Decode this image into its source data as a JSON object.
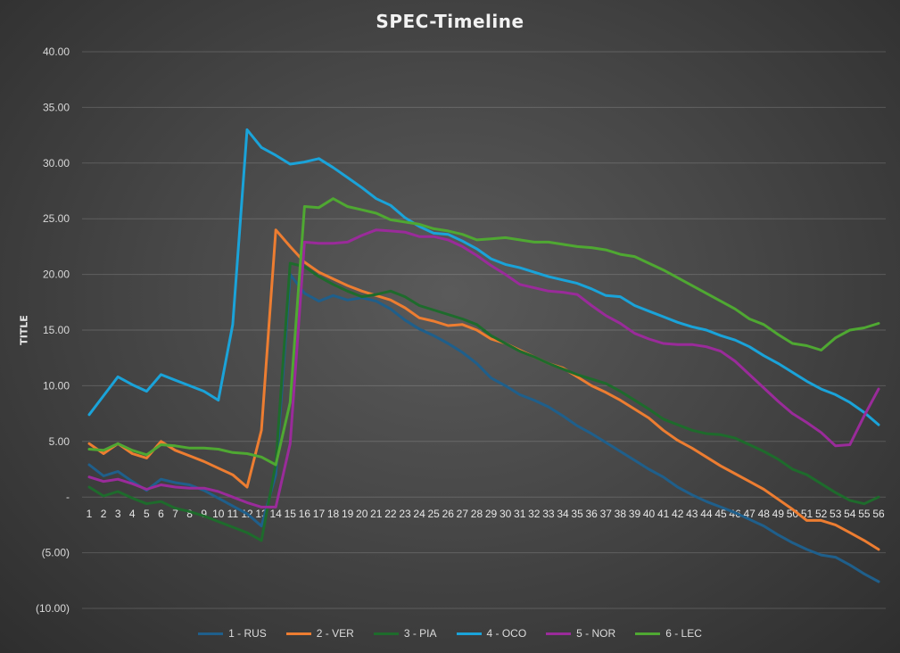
{
  "chart_data": {
    "type": "line",
    "title": "SPEC-Timeline",
    "xlabel": "",
    "ylabel": "TITLE",
    "ylim": [
      -10,
      40
    ],
    "y_ticks": [
      {
        "value": 40,
        "label": "40.00"
      },
      {
        "value": 35,
        "label": "35.00"
      },
      {
        "value": 30,
        "label": "30.00"
      },
      {
        "value": 25,
        "label": "25.00"
      },
      {
        "value": 20,
        "label": "20.00"
      },
      {
        "value": 15,
        "label": "15.00"
      },
      {
        "value": 10,
        "label": "10.00"
      },
      {
        "value": 5,
        "label": "5.00"
      },
      {
        "value": 0,
        "label": "-"
      },
      {
        "value": -5,
        "label": "(5.00)"
      },
      {
        "value": -10,
        "label": "(10.00)"
      }
    ],
    "categories": [
      "1",
      "2",
      "3",
      "4",
      "5",
      "6",
      "7",
      "8",
      "9",
      "10",
      "11",
      "12",
      "13",
      "14",
      "15",
      "16",
      "17",
      "18",
      "19",
      "20",
      "21",
      "22",
      "23",
      "24",
      "25",
      "26",
      "27",
      "28",
      "29",
      "30",
      "31",
      "32",
      "33",
      "34",
      "35",
      "36",
      "37",
      "38",
      "39",
      "40",
      "41",
      "42",
      "43",
      "44",
      "45",
      "46",
      "47",
      "48",
      "49",
      "50",
      "51",
      "52",
      "53",
      "54",
      "55",
      "56"
    ],
    "legend_position": "bottom",
    "series": [
      {
        "name": "1 - RUS",
        "color": "#1f5f8b",
        "values": [
          2.9,
          1.9,
          2.3,
          1.4,
          0.6,
          1.6,
          1.3,
          1.1,
          0.6,
          -0.1,
          -0.8,
          -1.5,
          -2.6,
          2.0,
          20.0,
          18.3,
          17.6,
          18.1,
          17.7,
          17.9,
          17.6,
          16.9,
          15.9,
          15.1,
          14.5,
          13.8,
          13.0,
          12.0,
          10.7,
          10.0,
          9.2,
          8.7,
          8.1,
          7.3,
          6.4,
          5.7,
          4.9,
          4.1,
          3.3,
          2.5,
          1.8,
          0.9,
          0.2,
          -0.4,
          -0.9,
          -1.4,
          -2.0,
          -2.6,
          -3.4,
          -4.1,
          -4.7,
          -5.2,
          -5.4,
          -6.1,
          -6.9,
          -7.6
        ]
      },
      {
        "name": "2 - VER",
        "color": "#ed7d31",
        "values": [
          4.8,
          3.9,
          4.8,
          3.9,
          3.5,
          5.0,
          4.2,
          3.7,
          3.2,
          2.6,
          2.0,
          0.9,
          6.0,
          24.0,
          22.5,
          21.1,
          20.2,
          19.6,
          19.0,
          18.5,
          18.1,
          17.7,
          17.0,
          16.1,
          15.8,
          15.4,
          15.5,
          15.0,
          14.2,
          13.8,
          13.2,
          12.6,
          12.0,
          11.6,
          10.8,
          10.0,
          9.4,
          8.7,
          7.9,
          7.1,
          6.0,
          5.1,
          4.4,
          3.6,
          2.8,
          2.1,
          1.4,
          0.7,
          -0.2,
          -1.1,
          -2.1,
          -2.1,
          -2.5,
          -3.2,
          -3.9,
          -4.7
        ]
      },
      {
        "name": "3 - PIA",
        "color": "#1e6b2c",
        "values": [
          0.9,
          0.1,
          0.5,
          -0.1,
          -0.6,
          -0.4,
          -1.0,
          -1.3,
          -1.7,
          -2.2,
          -2.7,
          -3.2,
          -3.9,
          3.0,
          21.0,
          20.7,
          19.8,
          19.1,
          18.5,
          18.0,
          18.2,
          18.5,
          18.0,
          17.2,
          16.8,
          16.4,
          16.0,
          15.5,
          14.5,
          13.8,
          13.1,
          12.6,
          12.0,
          11.5,
          11.0,
          10.6,
          10.2,
          9.5,
          8.7,
          7.9,
          7.0,
          6.5,
          6.0,
          5.7,
          5.6,
          5.3,
          4.7,
          4.1,
          3.4,
          2.5,
          2.0,
          1.2,
          0.4,
          -0.3,
          -0.6,
          0.0
        ]
      },
      {
        "name": "4 - OCO",
        "color": "#1aa3d9",
        "values": [
          7.4,
          9.1,
          10.8,
          10.1,
          9.5,
          11.0,
          10.5,
          10.0,
          9.5,
          8.7,
          15.5,
          33.0,
          31.4,
          30.7,
          29.9,
          30.1,
          30.4,
          29.6,
          28.7,
          27.8,
          26.8,
          26.2,
          25.1,
          24.3,
          23.7,
          23.6,
          23.0,
          22.3,
          21.4,
          20.9,
          20.6,
          20.2,
          19.8,
          19.5,
          19.2,
          18.7,
          18.1,
          18.0,
          17.2,
          16.7,
          16.2,
          15.7,
          15.3,
          15.0,
          14.5,
          14.1,
          13.5,
          12.7,
          12.0,
          11.2,
          10.4,
          9.7,
          9.2,
          8.5,
          7.6,
          6.5
        ]
      },
      {
        "name": "5 - NOR",
        "color": "#9a2b9a",
        "values": [
          1.8,
          1.4,
          1.6,
          1.2,
          0.7,
          1.1,
          0.9,
          0.8,
          0.8,
          0.5,
          0.0,
          -0.5,
          -0.9,
          -0.9,
          4.8,
          22.9,
          22.8,
          22.8,
          22.9,
          23.5,
          24.0,
          23.9,
          23.8,
          23.4,
          23.4,
          23.1,
          22.5,
          21.7,
          20.8,
          20.0,
          19.1,
          18.8,
          18.5,
          18.4,
          18.2,
          17.2,
          16.3,
          15.6,
          14.7,
          14.2,
          13.8,
          13.7,
          13.7,
          13.5,
          13.1,
          12.2,
          11.0,
          9.8,
          8.6,
          7.5,
          6.7,
          5.8,
          4.6,
          4.7,
          7.3,
          9.7
        ]
      },
      {
        "name": "6 - LEC",
        "color": "#4fa832",
        "values": [
          4.3,
          4.2,
          4.8,
          4.2,
          3.8,
          4.7,
          4.6,
          4.4,
          4.4,
          4.3,
          4.0,
          3.9,
          3.6,
          2.9,
          8.5,
          26.1,
          26.0,
          26.8,
          26.1,
          25.8,
          25.5,
          24.9,
          24.7,
          24.5,
          24.1,
          23.9,
          23.6,
          23.1,
          23.2,
          23.3,
          23.1,
          22.9,
          22.9,
          22.7,
          22.5,
          22.4,
          22.2,
          21.8,
          21.6,
          21.0,
          20.4,
          19.7,
          19.0,
          18.3,
          17.6,
          16.9,
          16.0,
          15.5,
          14.6,
          13.8,
          13.6,
          13.2,
          14.3,
          15.0,
          15.2,
          15.6
        ]
      }
    ]
  }
}
